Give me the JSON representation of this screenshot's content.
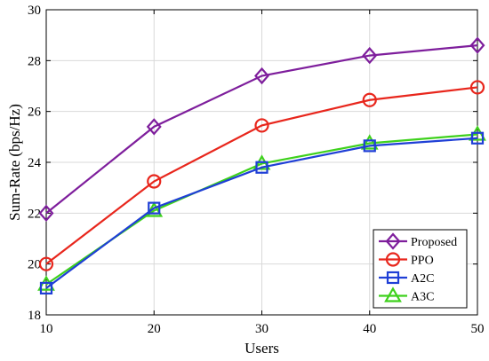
{
  "chart_data": {
    "type": "line",
    "xlabel": "Users",
    "ylabel": "Sum-Rate (bps/Hz)",
    "x": [
      10,
      20,
      30,
      40,
      50
    ],
    "xlim": [
      10,
      50
    ],
    "ylim": [
      18,
      30
    ],
    "xticks": [
      "10",
      "20",
      "30",
      "40",
      "50"
    ],
    "yticks": [
      "18",
      "20",
      "22",
      "24",
      "26",
      "28",
      "30"
    ],
    "grid": true,
    "legend_position": "bottom-right",
    "series": [
      {
        "name": "Proposed",
        "color": "#7E1E9C",
        "marker": "diamond",
        "values": [
          22.0,
          25.4,
          27.4,
          28.2,
          28.6
        ]
      },
      {
        "name": "PPO",
        "color": "#E8261C",
        "marker": "circle",
        "values": [
          20.0,
          23.25,
          25.45,
          26.45,
          26.95
        ]
      },
      {
        "name": "A2C",
        "color": "#1F3FD6",
        "marker": "square",
        "values": [
          19.05,
          22.2,
          23.8,
          24.65,
          24.95
        ]
      },
      {
        "name": "A3C",
        "color": "#3ED11C",
        "marker": "triangle",
        "values": [
          19.2,
          22.1,
          23.95,
          24.75,
          25.1
        ]
      }
    ]
  }
}
